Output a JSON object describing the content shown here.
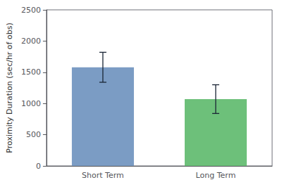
{
  "chart_data": {
    "type": "bar",
    "categories": [
      "Short Term",
      "Long Term"
    ],
    "values": [
      1580,
      1070
    ],
    "errors_upper": [
      240,
      230
    ],
    "errors_lower": [
      240,
      230
    ],
    "colors": [
      "#7B9CC4",
      "#6DC07A"
    ],
    "ylabel": "Proximity Duration (sec/hr of obs)",
    "ylim": [
      0,
      2500
    ],
    "yticks": [
      0,
      500,
      1000,
      1500,
      2000,
      2500
    ],
    "grid": false
  }
}
